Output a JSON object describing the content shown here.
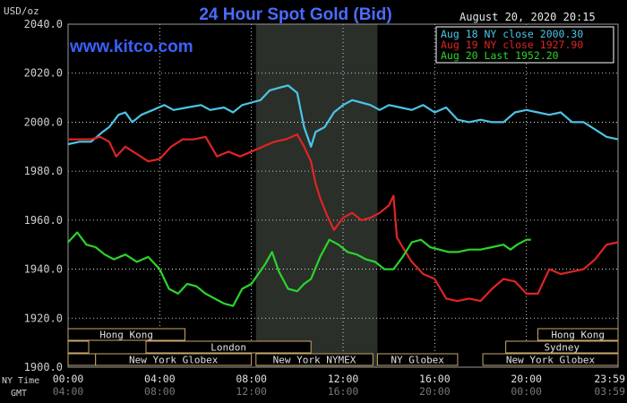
{
  "chart_data": {
    "type": "line",
    "title": "24 Hour Spot Gold (Bid)",
    "ylabel": "USD/oz",
    "watermark": "www.kitco.com",
    "timestamp": "August 20, 2020 20:15",
    "ylim": [
      1900,
      2040
    ],
    "yticks": [
      "2040.0",
      "2020.0",
      "2000.0",
      "1980.0",
      "1960.0",
      "1940.0",
      "1920.0",
      "1900.0"
    ],
    "xlim": [
      0,
      24
    ],
    "row_labels": {
      "ny": "NY Time",
      "gmt": "GMT"
    },
    "ny_ticks": [
      "00:00",
      "04:00",
      "08:00",
      "12:00",
      "16:00",
      "20:00",
      "23:59"
    ],
    "gmt_ticks": [
      "04:00",
      "08:00",
      "12:00",
      "16:00",
      "20:00",
      "00:00",
      "03:59"
    ],
    "legend_position": "top-right",
    "colors": {
      "background": "#000000",
      "grid": "#ffffff",
      "ny_session_shade": "#2a2f2a",
      "title": "#4a6cff",
      "watermark": "#3a62ff",
      "axis_text": "#cfcfcf",
      "session_bar": "#c9a86a"
    },
    "series": [
      {
        "name": "Aug 18 NY close 2000.30",
        "color": "#4cc4e6",
        "x": [
          0,
          0.5,
          1,
          1.5,
          1.8,
          2.2,
          2.5,
          2.8,
          3.2,
          3.7,
          4.2,
          4.6,
          5.2,
          5.8,
          6.2,
          6.8,
          7.2,
          7.6,
          8,
          8.4,
          8.8,
          9.2,
          9.6,
          10,
          10.3,
          10.6,
          10.8,
          11.2,
          11.6,
          12,
          12.4,
          12.8,
          13.2,
          13.6,
          14,
          14.5,
          15,
          15.5,
          16,
          16.5,
          17,
          17.5,
          18,
          18.5,
          19,
          19.5,
          20,
          20.5,
          21,
          21.5,
          22,
          22.5,
          23,
          23.5,
          24
        ],
        "y": [
          1991,
          1992,
          1992,
          1996,
          1998,
          2003,
          2004,
          2000,
          2003,
          2005,
          2007,
          2005,
          2006,
          2007,
          2005,
          2006,
          2004,
          2007,
          2008,
          2009,
          2013,
          2014,
          2015,
          2012,
          1998,
          1990,
          1996,
          1998,
          2004,
          2007,
          2009,
          2008,
          2007,
          2005,
          2007,
          2006,
          2005,
          2007,
          2004,
          2006,
          2001,
          2000,
          2001,
          2000,
          2000,
          2004,
          2005,
          2004,
          2003,
          2004,
          2000,
          2000,
          1997,
          1994,
          1993
        ]
      },
      {
        "name": "Aug 19 NY close 1927.90",
        "color": "#e02424",
        "x": [
          0,
          0.5,
          1,
          1.4,
          1.8,
          2.1,
          2.5,
          3,
          3.5,
          4,
          4.5,
          5,
          5.5,
          6,
          6.5,
          7,
          7.5,
          8,
          8.5,
          9,
          9.5,
          10,
          10.3,
          10.6,
          10.8,
          11,
          11.3,
          11.6,
          12,
          12.4,
          12.8,
          13.2,
          13.6,
          14,
          14.2,
          14.35,
          14.6,
          15,
          15.5,
          16,
          16.5,
          17,
          17.5,
          18,
          18.5,
          19,
          19.5,
          20,
          20.5,
          21,
          21.5,
          22,
          22.5,
          23,
          23.5,
          24
        ],
        "y": [
          1993,
          1993,
          1993,
          1994,
          1992,
          1986,
          1990,
          1987,
          1984,
          1985,
          1990,
          1993,
          1993,
          1994,
          1986,
          1988,
          1986,
          1988,
          1990,
          1992,
          1993,
          1995,
          1990,
          1984,
          1975,
          1969,
          1962,
          1956,
          1961,
          1963,
          1960,
          1961,
          1963,
          1966,
          1970,
          1953,
          1949,
          1943,
          1938,
          1936,
          1928,
          1927,
          1928,
          1927,
          1932,
          1936,
          1935,
          1930,
          1930,
          1940,
          1938,
          1939,
          1940,
          1944,
          1950,
          1951
        ]
      },
      {
        "name": "Aug 20 Last 1952.20",
        "color": "#2bd42b",
        "x": [
          0,
          0.4,
          0.8,
          1.2,
          1.6,
          2,
          2.5,
          3,
          3.5,
          4,
          4.4,
          4.8,
          5.2,
          5.6,
          6,
          6.4,
          6.8,
          7.2,
          7.6,
          8,
          8.3,
          8.6,
          8.9,
          9.2,
          9.6,
          10,
          10.3,
          10.6,
          11,
          11.4,
          11.8,
          12.2,
          12.6,
          13,
          13.4,
          13.8,
          14.2,
          14.6,
          15,
          15.4,
          15.8,
          16.2,
          16.6,
          17,
          17.5,
          18,
          18.5,
          19,
          19.3,
          19.6,
          20,
          20.2
        ],
        "y": [
          1951,
          1955,
          1950,
          1949,
          1946,
          1944,
          1946,
          1943,
          1945,
          1940,
          1932,
          1930,
          1934,
          1933,
          1930,
          1928,
          1926,
          1925,
          1932,
          1934,
          1938,
          1942,
          1947,
          1939,
          1932,
          1931,
          1934,
          1936,
          1945,
          1952,
          1950,
          1947,
          1946,
          1944,
          1943,
          1940,
          1940,
          1945,
          1951,
          1952,
          1949,
          1948,
          1947,
          1947,
          1948,
          1948,
          1949,
          1950,
          1948,
          1950,
          1952,
          1952
        ]
      }
    ],
    "sessions": [
      {
        "label": "Hong Kong",
        "row": 0,
        "start": 0,
        "end": 5.1
      },
      {
        "label": "",
        "row": 1,
        "start": 0,
        "end": 0.9
      },
      {
        "label": "London",
        "row": 1,
        "start": 3.4,
        "end": 10.6
      },
      {
        "label": "",
        "row": 2,
        "start": 0,
        "end": 1.2
      },
      {
        "label": "New York Globex",
        "row": 2,
        "start": 1.2,
        "end": 8
      },
      {
        "label": "New York NYMEX",
        "row": 2,
        "start": 8.2,
        "end": 13.3
      },
      {
        "label": "NY Globex",
        "row": 2,
        "start": 13.5,
        "end": 17
      },
      {
        "label": "Hong Kong",
        "row": 0,
        "start": 20.5,
        "end": 24
      },
      {
        "label": "Sydney",
        "row": 1,
        "start": 19.1,
        "end": 24
      },
      {
        "label": "New York Globex",
        "row": 2,
        "start": 18.1,
        "end": 24
      }
    ]
  }
}
